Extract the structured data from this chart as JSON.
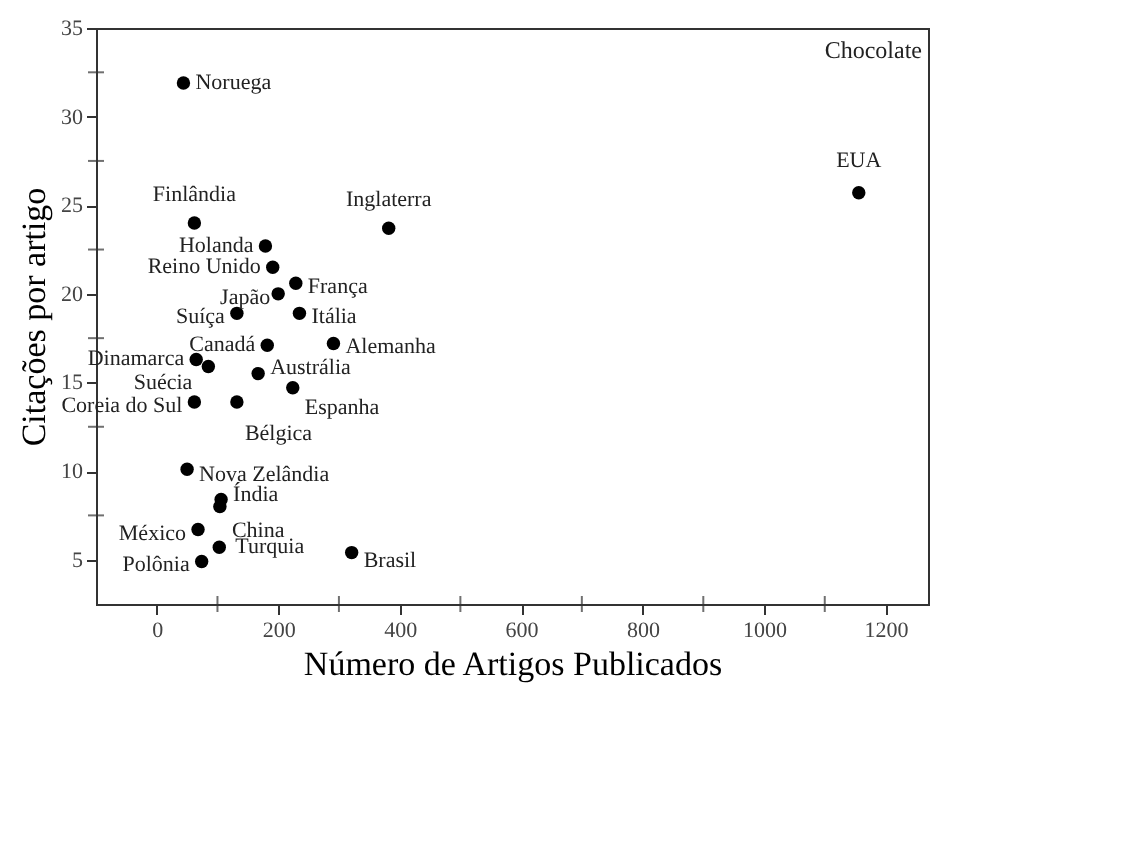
{
  "chart_data": {
    "type": "scatter",
    "xlabel": "Número de Artigos Publicados",
    "ylabel": "Citações por artigo",
    "xlim": [
      -100,
      1270
    ],
    "ylim": [
      2.5,
      35
    ],
    "xticks": [
      0,
      {
        "value": 100,
        "label": null
      },
      200,
      {
        "value": 300,
        "label": null
      },
      400,
      {
        "value": 500,
        "label": null
      },
      600,
      {
        "value": 700,
        "label": null
      },
      800,
      {
        "value": 900,
        "label": null
      },
      1000,
      {
        "value": 1100,
        "label": null
      },
      1200
    ],
    "yticks": [
      5,
      {
        "value": 7.5,
        "label": null
      },
      10,
      {
        "value": 12.5,
        "label": null
      },
      15,
      {
        "value": 17.5,
        "label": null
      },
      20,
      {
        "value": 22.5,
        "label": null
      },
      25,
      {
        "value": 27.5,
        "label": null
      },
      30,
      {
        "value": 32.5,
        "label": null
      },
      35
    ],
    "grid": false,
    "marker": "circle",
    "legend": false,
    "series": [
      {
        "color": "#000000",
        "x": [
          62,
          382,
          179,
          191,
          229,
          200,
          132,
          235,
          182,
          291,
          65,
          85,
          167,
          224,
          62,
          132,
          50,
          106,
          104,
          68,
          103,
          74,
          321
        ],
        "values": [
          24.0,
          23.7,
          22.7,
          21.5,
          20.6,
          20.0,
          18.9,
          18.9,
          17.1,
          17.2,
          16.3,
          15.9,
          15.5,
          14.7,
          13.9,
          13.9,
          10.1,
          8.4,
          8.0,
          6.7,
          5.7,
          4.9,
          5.4
        ]
      },
      {
        "color": "#000000",
        "x": [
          44,
          1156
        ],
        "values": [
          31.9,
          25.7
        ]
      }
    ],
    "annotations": [
      {
        "text": "Finlândia",
        "x": 62,
        "y": 24.0
      },
      {
        "text": "Inglaterra",
        "x": 382,
        "y": 23.7
      },
      {
        "text": "Holanda",
        "x": 179,
        "y": 22.7
      },
      {
        "text": "Reino Unido",
        "x": 191,
        "y": 21.5
      },
      {
        "text": "França",
        "x": 229,
        "y": 20.6
      },
      {
        "text": "Japão",
        "x": 200,
        "y": 20.0
      },
      {
        "text": "Suíça",
        "x": 132,
        "y": 18.9
      },
      {
        "text": "Itália",
        "x": 235,
        "y": 18.9
      },
      {
        "text": "Canadá",
        "x": 182,
        "y": 17.1
      },
      {
        "text": "Alemanha",
        "x": 291,
        "y": 17.2
      },
      {
        "text": "Dinamarca",
        "x": 65,
        "y": 16.3
      },
      {
        "text": "Suécia",
        "x": 85,
        "y": 15.9
      },
      {
        "text": "Austrália",
        "x": 167,
        "y": 15.5
      },
      {
        "text": "Espanha",
        "x": 224,
        "y": 14.7
      },
      {
        "text": "Coreia do Sul",
        "x": 62,
        "y": 13.9
      },
      {
        "text": "Bélgica",
        "x": 132,
        "y": 13.9
      },
      {
        "text": "Nova Zelândia",
        "x": 50,
        "y": 10.1
      },
      {
        "text": "Índia",
        "x": 106,
        "y": 8.4
      },
      {
        "text": "China",
        "x": 104,
        "y": 8.0
      },
      {
        "text": "México",
        "x": 68,
        "y": 6.7
      },
      {
        "text": "Turquia",
        "x": 103,
        "y": 5.7
      },
      {
        "text": "Polônia",
        "x": 74,
        "y": 4.9
      },
      {
        "text": "Brasil",
        "x": 321,
        "y": 5.4
      },
      {
        "text": "Noruega",
        "x": 44,
        "y": 31.9
      },
      {
        "text": "EUA",
        "x": 1156,
        "y": 25.7
      },
      "Chocolate"
    ]
  }
}
